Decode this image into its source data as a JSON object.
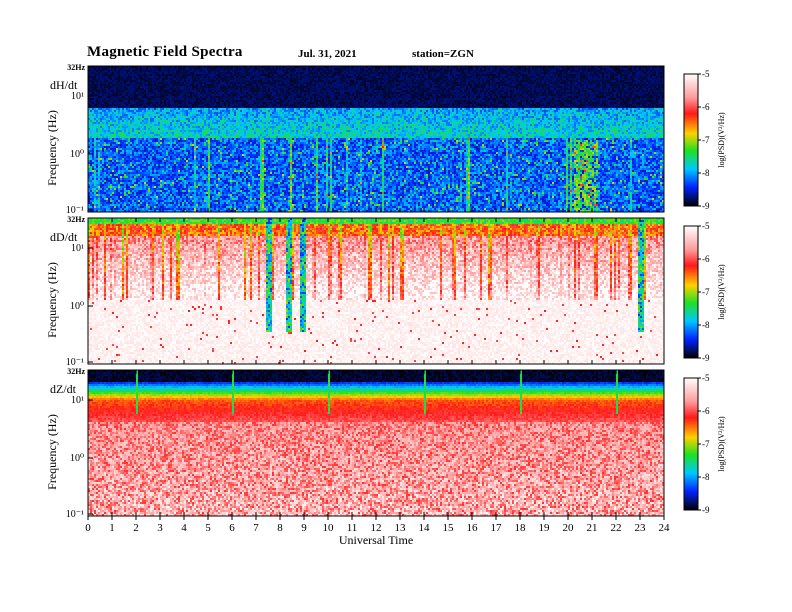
{
  "header": {
    "title": "Magnetic  Field  Spectra",
    "date": "Jul.  31,  2021",
    "station": "station=ZGN"
  },
  "chart_data": [
    {
      "type": "heatmap",
      "panel_label": "dH/dt",
      "ylabel": "Frequency  (Hz)",
      "y_top_label": "32Hz",
      "y_tick_labels": [
        "10¹",
        "10⁰",
        "10⁻¹"
      ],
      "colorbar": {
        "label": "log(PSD)(V²/Hz)",
        "ticks": [
          "-5",
          "-6",
          "-7",
          "-8",
          "-9"
        ],
        "range": [
          -9,
          -5
        ]
      },
      "pattern": "low-level background; intermittent enhancements at low frequency"
    },
    {
      "type": "heatmap",
      "panel_label": "dD/dt",
      "ylabel": "Frequency  (Hz)",
      "y_top_label": "32Hz",
      "y_tick_labels": [
        "10¹",
        "10⁰",
        "10⁻¹"
      ],
      "colorbar": {
        "label": "log(PSD)(V²/Hz)",
        "ticks": [
          "-5",
          "-6",
          "-7",
          "-8",
          "-9"
        ],
        "range": [
          -9,
          -5
        ]
      },
      "pattern": "high-level band near top frequencies with spikes around 7.5 h and 8.9 h"
    },
    {
      "type": "heatmap",
      "panel_label": "dZ/dt",
      "ylabel": "Frequency  (Hz)",
      "y_top_label": "32Hz",
      "y_tick_labels": [
        "10¹",
        "10⁰",
        "10⁻¹"
      ],
      "colorbar": {
        "label": "log(PSD)(V²/Hz)",
        "ticks": [
          "-5",
          "-6",
          "-7",
          "-8",
          "-9"
        ],
        "range": [
          -9,
          -5
        ]
      },
      "pattern": "strong broadband power, black above ~20 Hz, periodic lines every ~4 h"
    }
  ],
  "x_axis": {
    "label": "Universal  Time",
    "ticks": [
      "0",
      "1",
      "2",
      "3",
      "4",
      "5",
      "6",
      "7",
      "8",
      "9",
      "10",
      "11",
      "12",
      "13",
      "14",
      "15",
      "16",
      "17",
      "18",
      "19",
      "20",
      "21",
      "22",
      "23",
      "24"
    ],
    "range": [
      0,
      24
    ]
  }
}
